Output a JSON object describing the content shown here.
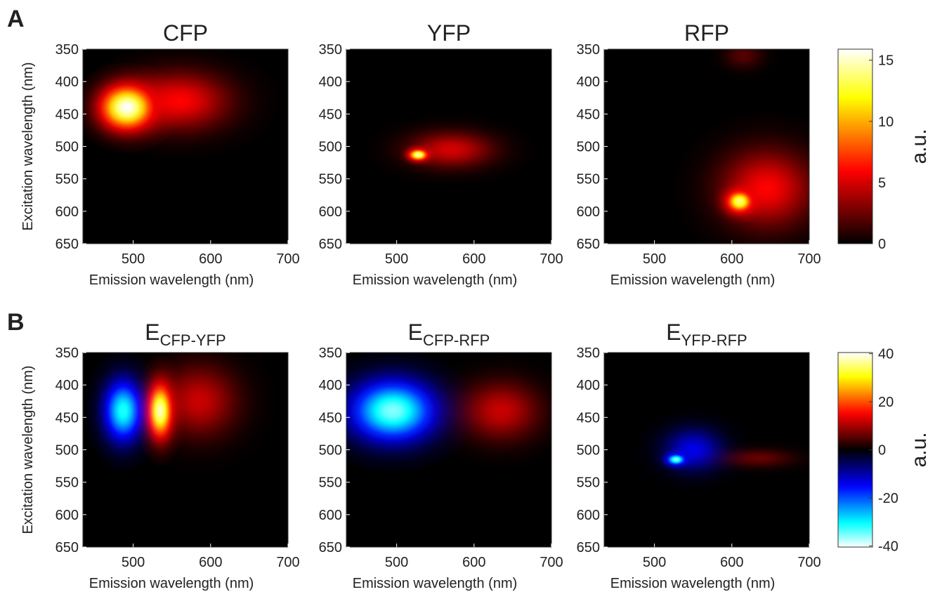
{
  "panel_labels": [
    "A",
    "B"
  ],
  "chart_data": [
    {
      "type": "heatmap",
      "title": "CFP",
      "colormap": "hot",
      "clim": [
        0,
        15.9
      ],
      "xlabel": "Emission wavelength (nm)",
      "ylabel": "Excitation wavelength (nm)",
      "xlim": [
        435,
        700
      ],
      "xticks": [
        500,
        600,
        700
      ],
      "ylim": [
        350,
        650
      ],
      "yticks": [
        350,
        400,
        450,
        500,
        550,
        600,
        650
      ],
      "y_inverted": true,
      "peaks": [
        {
          "emission": 560,
          "excitation": 430,
          "value": 6,
          "width": 130,
          "height": 90
        },
        {
          "emission": 492,
          "excitation": 440,
          "value": 16,
          "width": 70,
          "height": 70
        }
      ]
    },
    {
      "type": "heatmap",
      "title": "YFP",
      "colormap": "hot",
      "clim": [
        0,
        15.9
      ],
      "xlabel": "Emission wavelength (nm)",
      "xlim": [
        435,
        700
      ],
      "xticks": [
        500,
        600,
        700
      ],
      "ylim": [
        350,
        650
      ],
      "yticks": [
        350,
        400,
        450,
        500,
        550,
        600,
        650
      ],
      "y_inverted": true,
      "peaks": [
        {
          "emission": 570,
          "excitation": 505,
          "value": 5,
          "width": 110,
          "height": 55
        },
        {
          "emission": 528,
          "excitation": 513,
          "value": 15,
          "width": 25,
          "height": 18
        }
      ]
    },
    {
      "type": "heatmap",
      "title": "RFP",
      "colormap": "hot",
      "clim": [
        0,
        15.9
      ],
      "xlabel": "Emission wavelength (nm)",
      "xlim": [
        435,
        700
      ],
      "xticks": [
        500,
        600,
        700
      ],
      "ylim": [
        350,
        650
      ],
      "yticks": [
        350,
        400,
        450,
        500,
        550,
        600,
        650
      ],
      "y_inverted": true,
      "peaks": [
        {
          "emission": 615,
          "excitation": 360,
          "value": 2,
          "width": 50,
          "height": 40
        },
        {
          "emission": 645,
          "excitation": 565,
          "value": 6,
          "width": 120,
          "height": 120
        },
        {
          "emission": 610,
          "excitation": 585,
          "value": 14,
          "width": 35,
          "height": 35
        }
      ]
    },
    {
      "type": "heatmap",
      "title": {
        "main": "E",
        "sub": "CFP-YFP"
      },
      "colormap": "diverging",
      "clim": [
        -40.5,
        40.5
      ],
      "xlabel": "Emission wavelength (nm)",
      "ylabel": "Excitation wavelength (nm)",
      "xlim": [
        435,
        700
      ],
      "xticks": [
        500,
        600,
        700
      ],
      "ylim": [
        350,
        650
      ],
      "yticks": [
        350,
        400,
        450,
        500,
        550,
        600,
        650
      ],
      "y_inverted": true,
      "peaks": [
        {
          "emission": 487,
          "excitation": 440,
          "value": -32,
          "width": 50,
          "height": 95
        },
        {
          "emission": 585,
          "excitation": 425,
          "value": 12,
          "width": 100,
          "height": 110
        },
        {
          "emission": 535,
          "excitation": 440,
          "value": 38,
          "width": 32,
          "height": 85
        }
      ]
    },
    {
      "type": "heatmap",
      "title": {
        "main": "E",
        "sub": "CFP-RFP"
      },
      "colormap": "diverging",
      "clim": [
        -40.5,
        40.5
      ],
      "xlabel": "Emission wavelength (nm)",
      "xlim": [
        435,
        700
      ],
      "xticks": [
        500,
        600,
        700
      ],
      "ylim": [
        350,
        650
      ],
      "yticks": [
        350,
        400,
        450,
        500,
        550,
        600,
        650
      ],
      "y_inverted": true,
      "peaks": [
        {
          "emission": 495,
          "excitation": 440,
          "value": -36,
          "width": 110,
          "height": 95
        },
        {
          "emission": 635,
          "excitation": 440,
          "value": 12,
          "width": 100,
          "height": 90
        }
      ]
    },
    {
      "type": "heatmap",
      "title": {
        "main": "E",
        "sub": "YFP-RFP"
      },
      "colormap": "diverging",
      "clim": [
        -40.5,
        40.5
      ],
      "xlabel": "Emission wavelength (nm)",
      "xlim": [
        435,
        700
      ],
      "xticks": [
        500,
        600,
        700
      ],
      "ylim": [
        350,
        650
      ],
      "yticks": [
        350,
        400,
        450,
        500,
        550,
        600,
        650
      ],
      "y_inverted": true,
      "peaks": [
        {
          "emission": 550,
          "excitation": 500,
          "value": -14,
          "width": 75,
          "height": 65
        },
        {
          "emission": 528,
          "excitation": 515,
          "value": -36,
          "width": 25,
          "height": 18
        },
        {
          "emission": 635,
          "excitation": 513,
          "value": 6,
          "width": 90,
          "height": 28
        }
      ]
    },
    {
      "type": "colorbar",
      "colormap": "hot",
      "label": "a.u.",
      "ylim": [
        0,
        15.9
      ],
      "yticks": [
        0,
        5,
        10,
        15
      ]
    },
    {
      "type": "colorbar",
      "colormap": "diverging",
      "label": "a.u.",
      "ylim": [
        -40.5,
        40.5
      ],
      "yticks": [
        -40,
        -20,
        0,
        20,
        40
      ]
    }
  ]
}
